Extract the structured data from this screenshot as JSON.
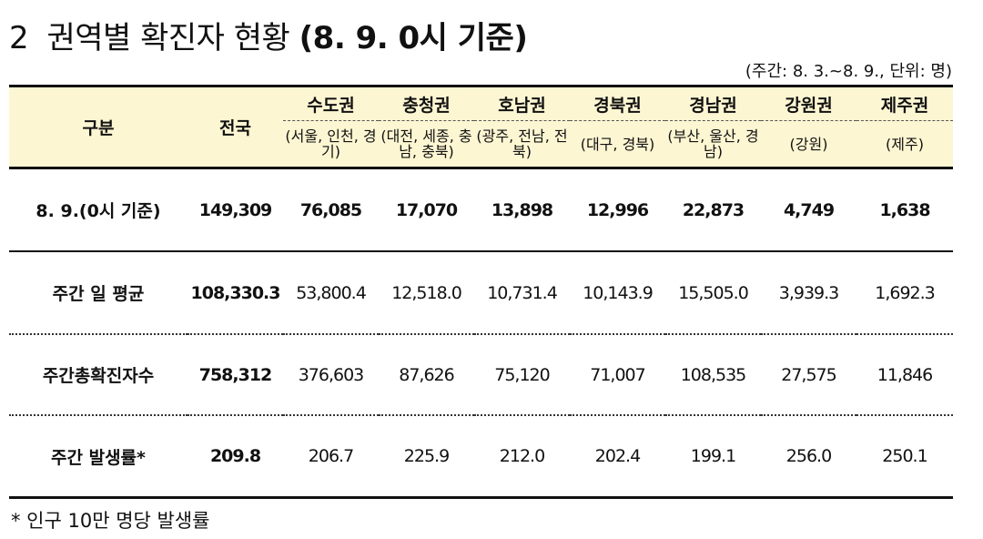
{
  "title": {
    "number": "2",
    "main": "권역별 확진자 현황",
    "sub": "(8. 9. 0시 기준)"
  },
  "unit_note": "(주간: 8. 3.~8. 9., 단위: 명)",
  "table": {
    "header": {
      "row_label": "구분",
      "national": "전국",
      "regions": [
        {
          "name": "수도권",
          "detail": "(서울, 인천, 경기)"
        },
        {
          "name": "충청권",
          "detail": "(대전, 세종, 충남, 충북)"
        },
        {
          "name": "호남권",
          "detail": "(광주, 전남, 전북)"
        },
        {
          "name": "경북권",
          "detail": "(대구, 경북)"
        },
        {
          "name": "경남권",
          "detail": "(부산, 울산, 경남)"
        },
        {
          "name": "강원권",
          "detail": "(강원)"
        },
        {
          "name": "제주권",
          "detail": "(제주)"
        }
      ]
    },
    "rows": [
      {
        "label": "8. 9.(0시 기준)",
        "values": [
          "149,309",
          "76,085",
          "17,070",
          "13,898",
          "12,996",
          "22,873",
          "4,749",
          "1,638"
        ]
      },
      {
        "label": "주간 일 평균",
        "values": [
          "108,330.3",
          "53,800.4",
          "12,518.0",
          "10,731.4",
          "10,143.9",
          "15,505.0",
          "3,939.3",
          "1,692.3"
        ]
      },
      {
        "label": "주간총확진자수",
        "values": [
          "758,312",
          "376,603",
          "87,626",
          "75,120",
          "71,007",
          "108,535",
          "27,575",
          "11,846"
        ]
      },
      {
        "label": "주간 발생률*",
        "values": [
          "209.8",
          "206.7",
          "225.9",
          "212.0",
          "202.4",
          "199.1",
          "256.0",
          "250.1"
        ]
      }
    ]
  },
  "footnote": "* 인구 10만 명당 발생률"
}
